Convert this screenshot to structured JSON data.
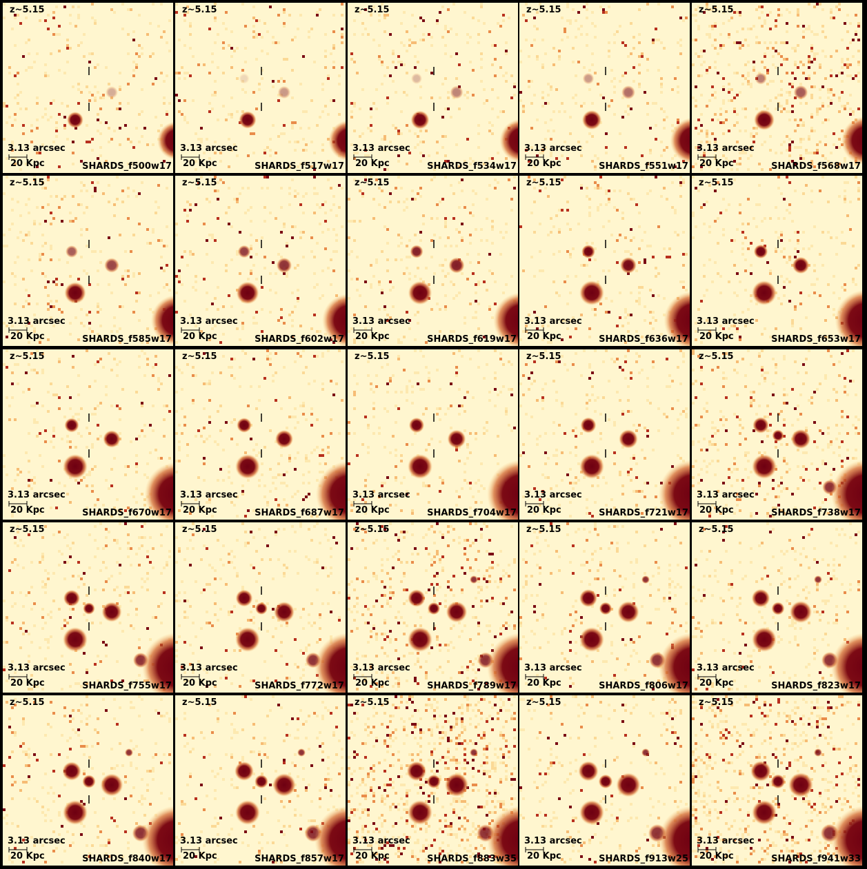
{
  "panels": [
    {
      "redshift": "z~5.15",
      "scale_arcsec": "3.13 arcsec",
      "scale_kpc": "20 Kpc",
      "filter": "SHARDS_f500w17"
    },
    {
      "redshift": "z~5.15",
      "scale_arcsec": "3.13 arcsec",
      "scale_kpc": "20 Kpc",
      "filter": "SHARDS_f517w17"
    },
    {
      "redshift": "z~5.15",
      "scale_arcsec": "3.13 arcsec",
      "scale_kpc": "20 Kpc",
      "filter": "SHARDS_f534w17"
    },
    {
      "redshift": "z~5.15",
      "scale_arcsec": "3.13 arcsec",
      "scale_kpc": "20 Kpc",
      "filter": "SHARDS_f551w17"
    },
    {
      "redshift": "z~5.15",
      "scale_arcsec": "3.13 arcsec",
      "scale_kpc": "20 Kpc",
      "filter": "SHARDS_f568w17"
    },
    {
      "redshift": "z~5.15",
      "scale_arcsec": "3.13 arcsec",
      "scale_kpc": "20 Kpc",
      "filter": "SHARDS_f585w17"
    },
    {
      "redshift": "z~5.15",
      "scale_arcsec": "3.13 arcsec",
      "scale_kpc": "20 Kpc",
      "filter": "SHARDS_f602w17"
    },
    {
      "redshift": "z~5.15",
      "scale_arcsec": "3.13 arcsec",
      "scale_kpc": "20 Kpc",
      "filter": "SHARDS_f619w17"
    },
    {
      "redshift": "z~5.15",
      "scale_arcsec": "3.13 arcsec",
      "scale_kpc": "20 Kpc",
      "filter": "SHARDS_f636w17"
    },
    {
      "redshift": "z~5.15",
      "scale_arcsec": "3.13 arcsec",
      "scale_kpc": "20 Kpc",
      "filter": "SHARDS_f653w17"
    },
    {
      "redshift": "z~5.15",
      "scale_arcsec": "3.13 arcsec",
      "scale_kpc": "20 Kpc",
      "filter": "SHARDS_f670w17"
    },
    {
      "redshift": "z~5.15",
      "scale_arcsec": "3.13 arcsec",
      "scale_kpc": "20 Kpc",
      "filter": "SHARDS_f687w17"
    },
    {
      "redshift": "z~5.15",
      "scale_arcsec": "3.13 arcsec",
      "scale_kpc": "20 Kpc",
      "filter": "SHARDS_f704w17"
    },
    {
      "redshift": "z~5.15",
      "scale_arcsec": "3.13 arcsec",
      "scale_kpc": "20 Kpc",
      "filter": "SHARDS_f721w17"
    },
    {
      "redshift": "z~5.15",
      "scale_arcsec": "3.13 arcsec",
      "scale_kpc": "20 Kpc",
      "filter": "SHARDS_f738w17"
    },
    {
      "redshift": "z~5.15",
      "scale_arcsec": "3.13 arcsec",
      "scale_kpc": "20 Kpc",
      "filter": "SHARDS_f755w17"
    },
    {
      "redshift": "z~5.15",
      "scale_arcsec": "3.13 arcsec",
      "scale_kpc": "20 Kpc",
      "filter": "SHARDS_f772w17"
    },
    {
      "redshift": "z~5.15",
      "scale_arcsec": "3.13 arcsec",
      "scale_kpc": "20 Kpc",
      "filter": "SHARDS_f789w17"
    },
    {
      "redshift": "z~5.15",
      "scale_arcsec": "3.13 arcsec",
      "scale_kpc": "20 Kpc",
      "filter": "SHARDS_f806w17"
    },
    {
      "redshift": "z~5.15",
      "scale_arcsec": "3.13 arcsec",
      "scale_kpc": "20 Kpc",
      "filter": "SHARDS_f823w17"
    },
    {
      "redshift": "z~5.15",
      "scale_arcsec": "3.13 arcsec",
      "scale_kpc": "20 Kpc",
      "filter": "SHARDS_f840w17"
    },
    {
      "redshift": "z~5.15",
      "scale_arcsec": "3.13 arcsec",
      "scale_kpc": "20 Kpc",
      "filter": "SHARDS_f857w17"
    },
    {
      "redshift": "z~5.15",
      "scale_arcsec": "3.13 arcsec",
      "scale_kpc": "20 Kpc",
      "filter": "SHARDS_f883w35"
    },
    {
      "redshift": "z~5.15",
      "scale_arcsec": "3.13 arcsec",
      "scale_kpc": "20 Kpc",
      "filter": "SHARDS_f913w25"
    },
    {
      "redshift": "z~5.15",
      "scale_arcsec": "3.13 arcsec",
      "scale_kpc": "20 Kpc",
      "filter": "SHARDS_f941w33"
    }
  ]
}
